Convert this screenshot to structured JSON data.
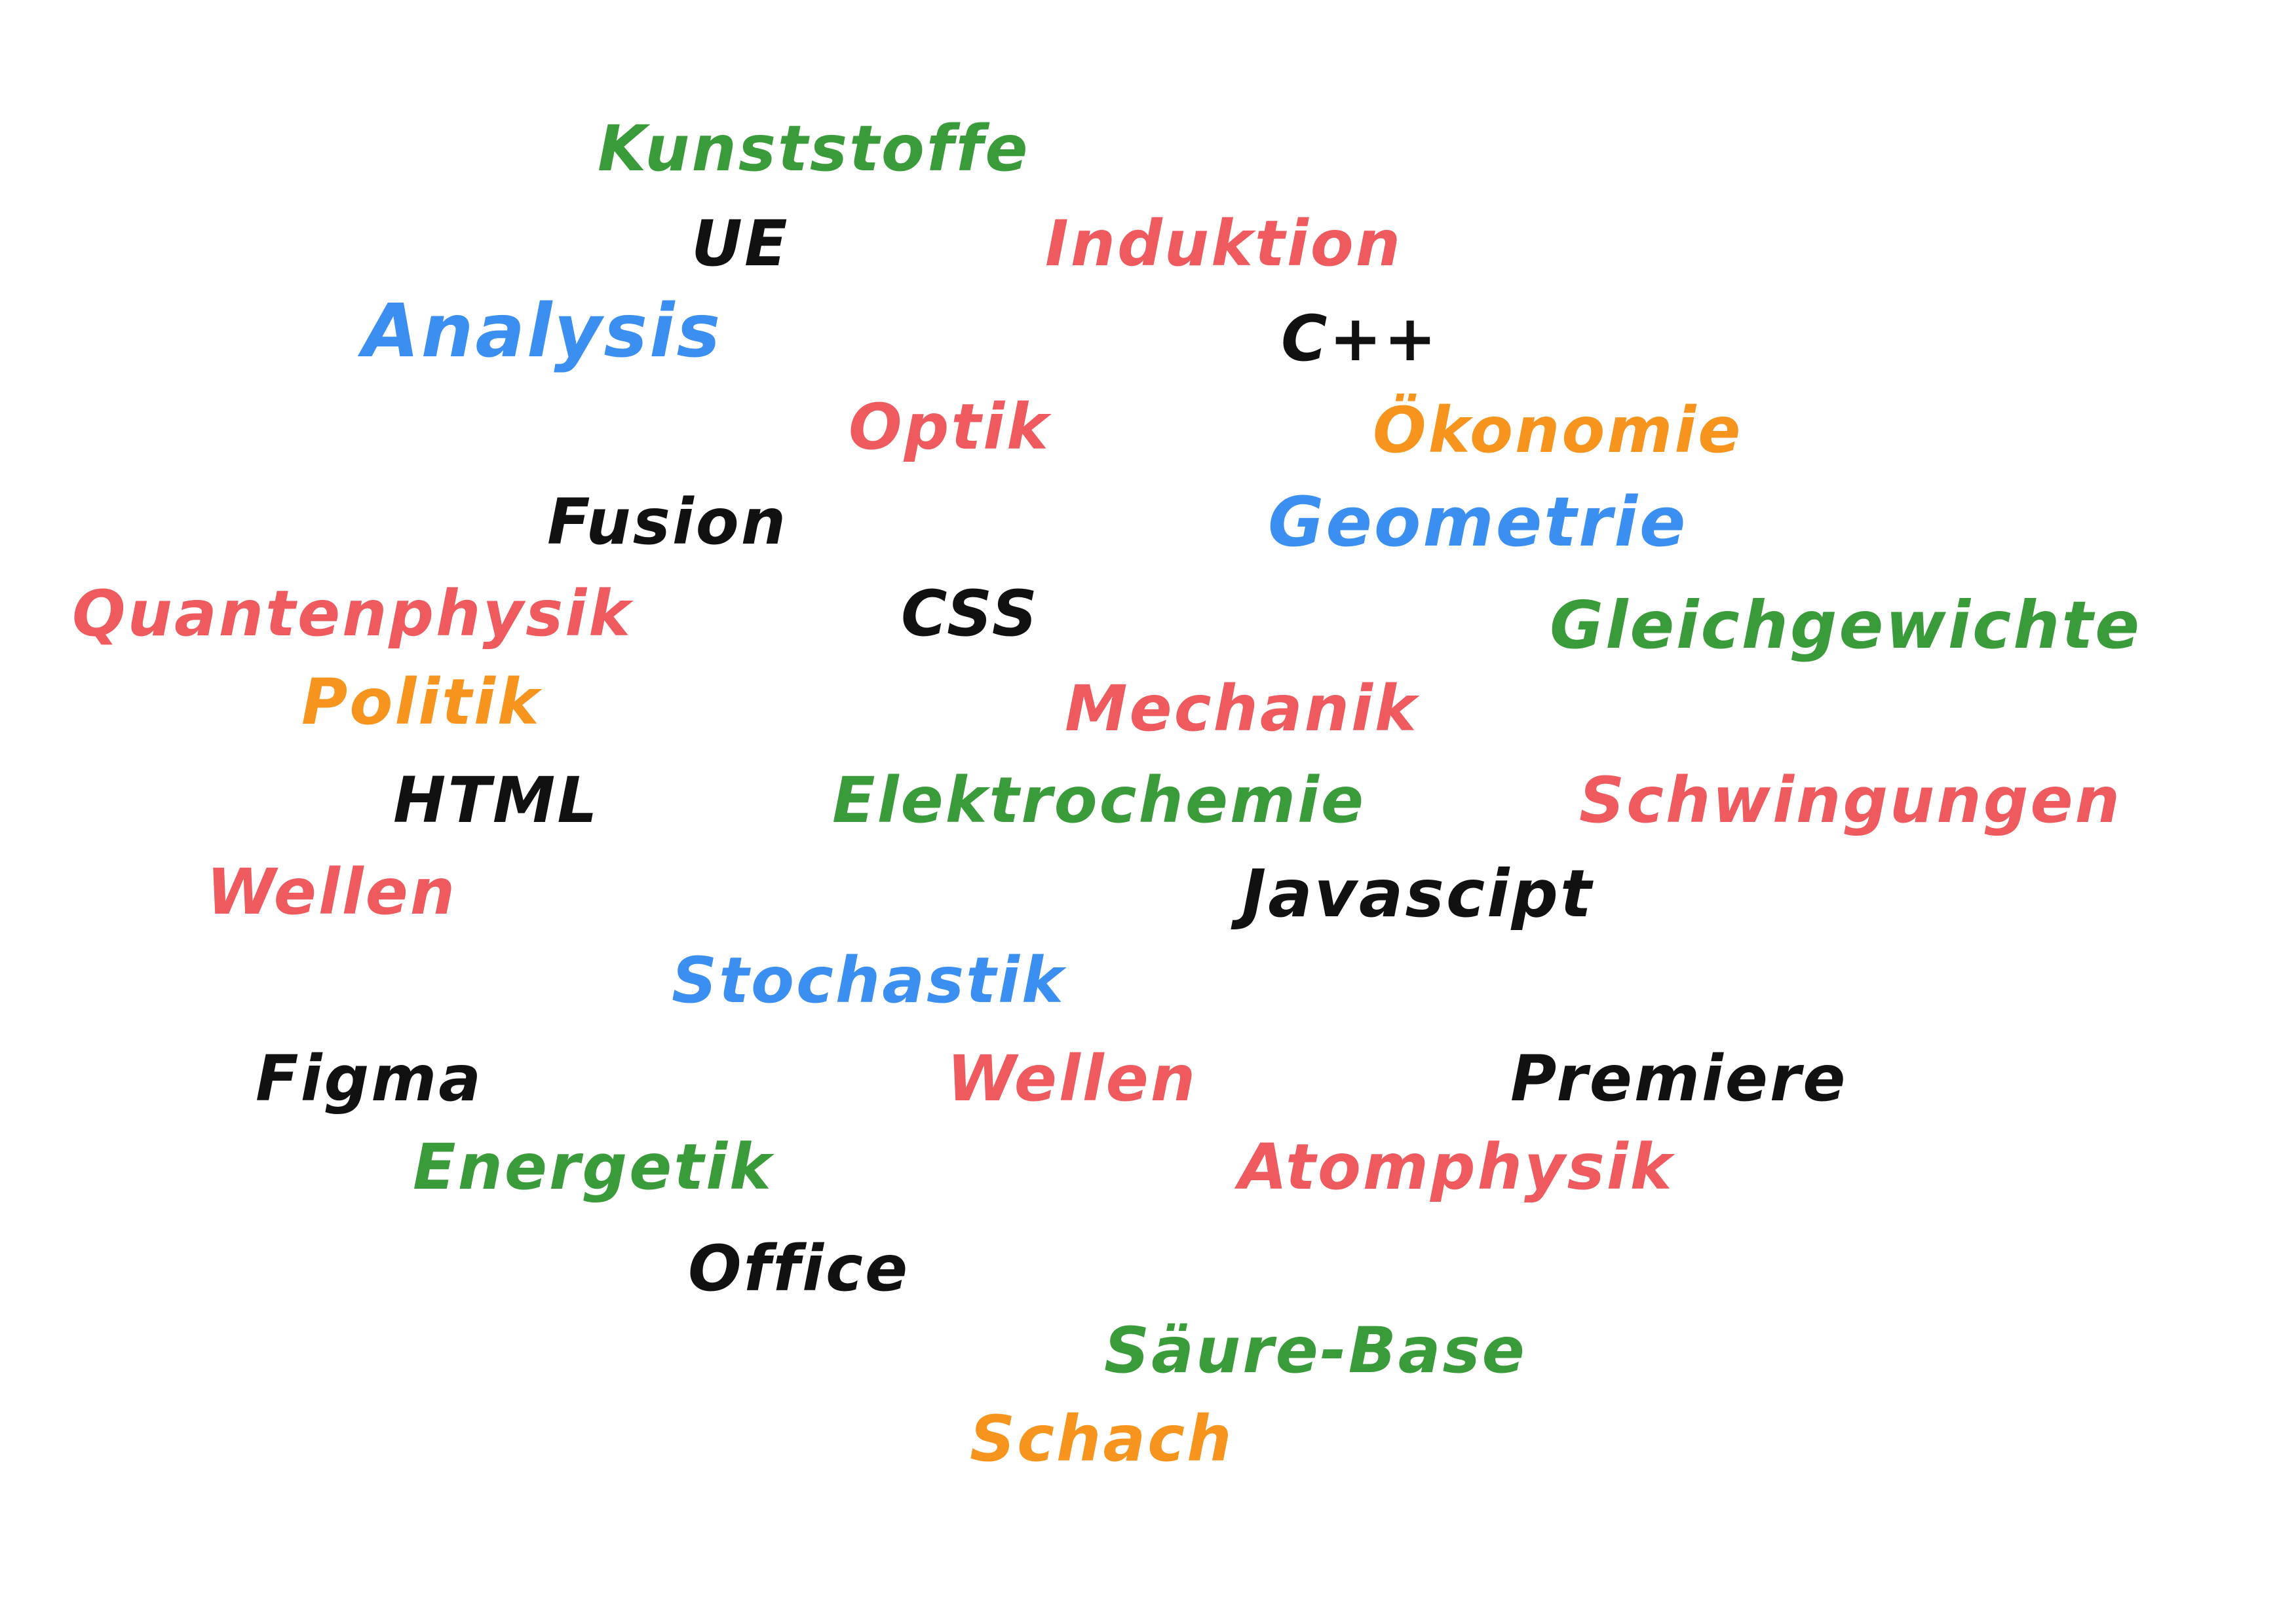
{
  "words": {
    "kunststoffe": {
      "text": "Kunststoffe",
      "color": "#3a9b3a"
    },
    "ue": {
      "text": "UE",
      "color": "#111111"
    },
    "induktion": {
      "text": "Induktion",
      "color": "#ef5a5f"
    },
    "analysis": {
      "text": "Analysis",
      "color": "#3b8ff0"
    },
    "cpp": {
      "text": "C++",
      "color": "#111111"
    },
    "optik": {
      "text": "Optik",
      "color": "#ef5a5f"
    },
    "oekonomie": {
      "text": "Ökonomie",
      "color": "#f7941d"
    },
    "fusion": {
      "text": "Fusion",
      "color": "#111111"
    },
    "geometrie": {
      "text": "Geometrie",
      "color": "#3b8ff0"
    },
    "quantenphysik": {
      "text": "Quantenphysik",
      "color": "#ef5a5f"
    },
    "css": {
      "text": "CSS",
      "color": "#111111"
    },
    "gleichgewichte": {
      "text": "Gleichgewichte",
      "color": "#3a9b3a"
    },
    "politik": {
      "text": "Politik",
      "color": "#f7941d"
    },
    "mechanik": {
      "text": "Mechanik",
      "color": "#ef5a5f"
    },
    "html": {
      "text": "HTML",
      "color": "#111111"
    },
    "elektrochemie": {
      "text": "Elektrochemie",
      "color": "#3a9b3a"
    },
    "schwingungen": {
      "text": "Schwingungen",
      "color": "#ef5a5f"
    },
    "wellen1": {
      "text": "Wellen",
      "color": "#ef5a5f"
    },
    "javascript": {
      "text": "Javascipt",
      "color": "#111111"
    },
    "stochastik": {
      "text": "Stochastik",
      "color": "#3b8ff0"
    },
    "figma": {
      "text": "Figma",
      "color": "#111111"
    },
    "wellen2": {
      "text": "Wellen",
      "color": "#ef5a5f"
    },
    "premiere": {
      "text": "Premiere",
      "color": "#111111"
    },
    "energetik": {
      "text": "Energetik",
      "color": "#3a9b3a"
    },
    "atomphysik": {
      "text": "Atomphysik",
      "color": "#ef5a5f"
    },
    "office": {
      "text": "Office",
      "color": "#111111"
    },
    "saeure_base": {
      "text": "Säure-Base",
      "color": "#3a9b3a"
    },
    "schach": {
      "text": "Schach",
      "color": "#f7941d"
    }
  }
}
